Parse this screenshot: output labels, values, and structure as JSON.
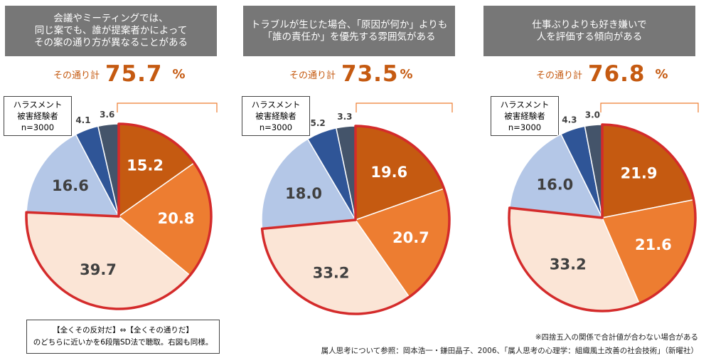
{
  "panels": [
    {
      "title": "会議やミーティングでは、\n同じ案でも、誰が提案者かによって\nその案の通り方が異なることがある",
      "total_label": "その通り計",
      "total_value": "75.7",
      "total_unit": "%",
      "sample": "ハラスメント\n被害経験者\nn=3000"
    },
    {
      "title": "トラブルが生じた場合、「原因が何か」よりも\n「誰の責任か」を優先する雰囲気がある",
      "total_label": "その通り計",
      "total_value": "73.5",
      "total_unit": "%",
      "sample": "ハラスメント\n被害経験者\nn=3000"
    },
    {
      "title": "仕事ぶりよりも好き嫌いで\n人を評価する傾向がある",
      "total_label": "その通り計",
      "total_value": "76.8",
      "total_unit": "%",
      "sample": "ハラスメント\n被害経験者\nn=3000"
    }
  ],
  "note": "【全くその反対だ】⇔【全くその通りだ】\nのどちらに近いかを6段階SD法で聴取。右図も同様。",
  "footnote1": "※四捨五入の関係で合計値が合わない場合がある",
  "footnote2": "属人思考について参照：岡本浩一・鎌田晶子、2006、「属人思考の心理学：組織風土改善の社会技術」（新曜社）",
  "colors": [
    "#C55A11",
    "#ED7D31",
    "#FBE5D6",
    "#B4C7E7",
    "#2F5597",
    "#44546A"
  ],
  "highlight_color": "#D42B2B",
  "chart_data": [
    {
      "type": "pie",
      "title": "会議やミーティングでは、同じ案でも、誰が提案者かによってその案の通り方が異なることがある",
      "values": [
        15.2,
        20.8,
        39.7,
        16.6,
        4.1,
        3.6
      ],
      "labels": [
        "15.2",
        "20.8",
        "39.7",
        "16.6",
        "4.1",
        "3.6"
      ],
      "highlighted_slices": [
        0,
        1,
        2
      ],
      "highlight_total": 75.7
    },
    {
      "type": "pie",
      "title": "トラブルが生じた場合、「原因が何か」よりも「誰の責任か」を優先する雰囲気がある",
      "values": [
        19.6,
        20.7,
        33.2,
        18.0,
        5.2,
        3.3
      ],
      "labels": [
        "19.6",
        "20.7",
        "33.2",
        "18.0",
        "5.2",
        "3.3"
      ],
      "highlighted_slices": [
        0,
        1,
        2
      ],
      "highlight_total": 73.5
    },
    {
      "type": "pie",
      "title": "仕事ぶりよりも好き嫌いで人を評価する傾向がある",
      "values": [
        21.9,
        21.6,
        33.2,
        16.0,
        4.3,
        3.0
      ],
      "labels": [
        "21.9",
        "21.6",
        "33.2",
        "16.0",
        "4.3",
        "3.0"
      ],
      "highlighted_slices": [
        0,
        1,
        2
      ],
      "highlight_total": 76.8
    }
  ]
}
